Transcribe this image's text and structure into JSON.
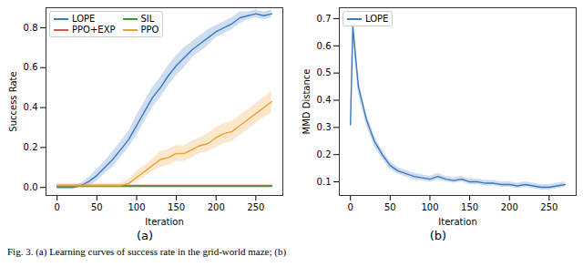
{
  "chart_data": [
    {
      "type": "line",
      "label": "(a)",
      "x_label": "Iteration",
      "y_label": "Success Rate",
      "x": [
        0,
        10,
        20,
        30,
        40,
        50,
        60,
        70,
        80,
        90,
        100,
        110,
        120,
        130,
        140,
        150,
        160,
        170,
        180,
        190,
        200,
        210,
        220,
        230,
        240,
        250,
        260,
        270
      ],
      "series": [
        {
          "name": "LOPE",
          "color": "#3b78c2",
          "values": [
            0.0,
            0.0,
            0.0,
            0.01,
            0.03,
            0.06,
            0.1,
            0.14,
            0.19,
            0.24,
            0.31,
            0.38,
            0.45,
            0.5,
            0.56,
            0.61,
            0.65,
            0.69,
            0.72,
            0.75,
            0.78,
            0.8,
            0.82,
            0.85,
            0.86,
            0.87,
            0.86,
            0.87
          ],
          "lower": [
            0.0,
            0.0,
            0.0,
            0.0,
            0.01,
            0.03,
            0.07,
            0.1,
            0.15,
            0.2,
            0.26,
            0.33,
            0.4,
            0.45,
            0.51,
            0.56,
            0.6,
            0.65,
            0.68,
            0.71,
            0.75,
            0.77,
            0.79,
            0.82,
            0.84,
            0.85,
            0.84,
            0.85
          ],
          "upper": [
            0.01,
            0.01,
            0.01,
            0.02,
            0.05,
            0.09,
            0.13,
            0.18,
            0.23,
            0.28,
            0.36,
            0.43,
            0.5,
            0.55,
            0.61,
            0.66,
            0.7,
            0.73,
            0.76,
            0.79,
            0.81,
            0.83,
            0.85,
            0.88,
            0.88,
            0.89,
            0.88,
            0.89
          ]
        },
        {
          "name": "SIL",
          "color": "#2ca02c",
          "values": [
            0.005,
            0.005,
            0.005,
            0.005,
            0.005,
            0.005,
            0.005,
            0.005,
            0.005,
            0.005,
            0.005,
            0.005,
            0.005,
            0.005,
            0.005,
            0.005,
            0.005,
            0.005,
            0.005,
            0.005,
            0.005,
            0.005,
            0.005,
            0.005,
            0.005,
            0.005,
            0.005,
            0.005
          ]
        },
        {
          "name": "PPO+EXP",
          "color": "#d9534f",
          "values": [
            0.01,
            0.01,
            0.01,
            0.01,
            0.01,
            0.01,
            0.01,
            0.01,
            0.01,
            0.01,
            0.01,
            0.01,
            0.01,
            0.01,
            0.01,
            0.01,
            0.01,
            0.01,
            0.01,
            0.01,
            0.01,
            0.01,
            0.01,
            0.01,
            0.01,
            0.01,
            0.01,
            0.01
          ]
        },
        {
          "name": "PPO",
          "color": "#f0a030",
          "values": [
            0.01,
            0.01,
            0.01,
            0.01,
            0.01,
            0.01,
            0.01,
            0.01,
            0.01,
            0.02,
            0.05,
            0.08,
            0.11,
            0.14,
            0.15,
            0.17,
            0.17,
            0.19,
            0.21,
            0.22,
            0.25,
            0.27,
            0.28,
            0.31,
            0.34,
            0.37,
            0.4,
            0.43
          ],
          "lower": [
            0.0,
            0.0,
            0.0,
            0.0,
            0.0,
            0.0,
            0.0,
            0.0,
            0.0,
            0.01,
            0.03,
            0.05,
            0.08,
            0.1,
            0.11,
            0.13,
            0.13,
            0.15,
            0.17,
            0.18,
            0.2,
            0.22,
            0.23,
            0.26,
            0.29,
            0.32,
            0.35,
            0.37
          ],
          "upper": [
            0.02,
            0.02,
            0.02,
            0.02,
            0.02,
            0.02,
            0.02,
            0.02,
            0.02,
            0.04,
            0.08,
            0.11,
            0.14,
            0.18,
            0.19,
            0.21,
            0.21,
            0.23,
            0.25,
            0.27,
            0.3,
            0.32,
            0.33,
            0.36,
            0.39,
            0.42,
            0.45,
            0.48
          ]
        }
      ],
      "xlim": [
        -14,
        284
      ],
      "xticks": [
        0,
        50,
        100,
        150,
        200,
        250
      ],
      "ylim": [
        -0.04,
        0.9
      ],
      "yticks": [
        0.0,
        0.2,
        0.4,
        0.6,
        0.8
      ],
      "yticklabels": [
        {
          "value": 0.0,
          "label": "0.0"
        },
        {
          "value": 0.2,
          "label": "0.2"
        },
        {
          "value": 0.4,
          "label": "0.4"
        },
        {
          "value": 0.6,
          "label": "0.6"
        },
        {
          "value": 0.8,
          "label": "0.8"
        }
      ],
      "legend": "upper left"
    },
    {
      "type": "line",
      "label": "(b)",
      "x_label": "Iteration",
      "y_label": "MMD Distance",
      "x": [
        0,
        3,
        10,
        20,
        30,
        40,
        50,
        60,
        70,
        80,
        90,
        100,
        110,
        120,
        130,
        140,
        150,
        160,
        170,
        180,
        190,
        200,
        210,
        220,
        230,
        240,
        250,
        260,
        270
      ],
      "series": [
        {
          "name": "LOPE",
          "color": "#3b78c2",
          "values": [
            0.31,
            0.67,
            0.45,
            0.33,
            0.25,
            0.2,
            0.16,
            0.14,
            0.13,
            0.12,
            0.115,
            0.11,
            0.12,
            0.11,
            0.105,
            0.11,
            0.1,
            0.1,
            0.095,
            0.095,
            0.09,
            0.09,
            0.085,
            0.09,
            0.085,
            0.08,
            0.08,
            0.085,
            0.09
          ],
          "lower": [
            0.29,
            0.63,
            0.42,
            0.31,
            0.23,
            0.185,
            0.145,
            0.128,
            0.118,
            0.108,
            0.104,
            0.1,
            0.108,
            0.1,
            0.095,
            0.1,
            0.09,
            0.09,
            0.085,
            0.085,
            0.08,
            0.08,
            0.075,
            0.08,
            0.075,
            0.07,
            0.07,
            0.075,
            0.08
          ],
          "upper": [
            0.33,
            0.71,
            0.48,
            0.35,
            0.27,
            0.215,
            0.175,
            0.152,
            0.142,
            0.132,
            0.126,
            0.12,
            0.132,
            0.12,
            0.115,
            0.12,
            0.11,
            0.11,
            0.105,
            0.105,
            0.1,
            0.1,
            0.095,
            0.1,
            0.095,
            0.09,
            0.09,
            0.095,
            0.1
          ]
        }
      ],
      "xlim": [
        -14,
        284
      ],
      "xticks": [
        0,
        50,
        100,
        150,
        200,
        250
      ],
      "ylim": [
        0.05,
        0.74
      ],
      "yticks": [
        0.1,
        0.2,
        0.3,
        0.4,
        0.5,
        0.6,
        0.7
      ],
      "legend": "upper left"
    }
  ],
  "caption": "Fig. 3.   (a) Learning curves of success rate in the grid-world maze; (b)"
}
